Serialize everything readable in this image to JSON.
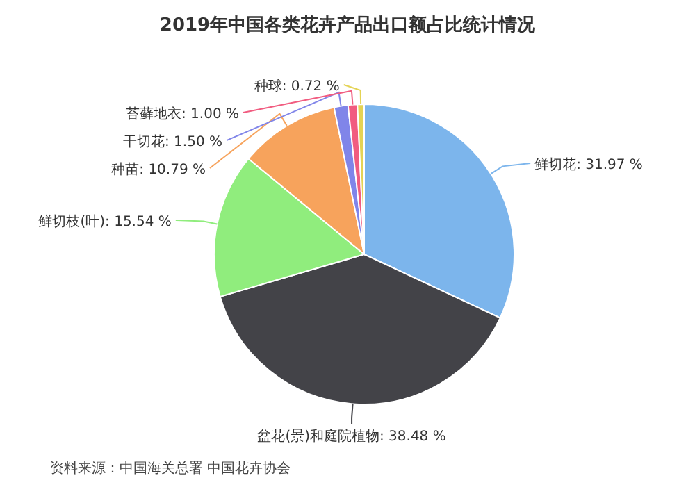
{
  "chart_data": {
    "type": "pie",
    "title": "2019年中国各类花卉产品出口额占比统计情况",
    "categories": [
      "鲜切花",
      "盆花(景)和庭院植物",
      "鲜切枝(叶)",
      "种苗",
      "干切花",
      "苔藓地衣",
      "种球"
    ],
    "values": [
      31.97,
      38.48,
      15.54,
      10.79,
      1.5,
      1.0,
      0.72
    ],
    "value_labels": [
      "31.97 %",
      "38.48 %",
      "15.54 %",
      "10.79 %",
      "1.50 %",
      "1.00 %",
      "0.72 %"
    ],
    "colors": [
      "#7cb5ec",
      "#434348",
      "#90ed7d",
      "#f7a35c",
      "#8085e9",
      "#f15c80",
      "#e4d354"
    ],
    "annotations": [
      "资料来源：中国海关总署 中国花卉协会"
    ]
  }
}
